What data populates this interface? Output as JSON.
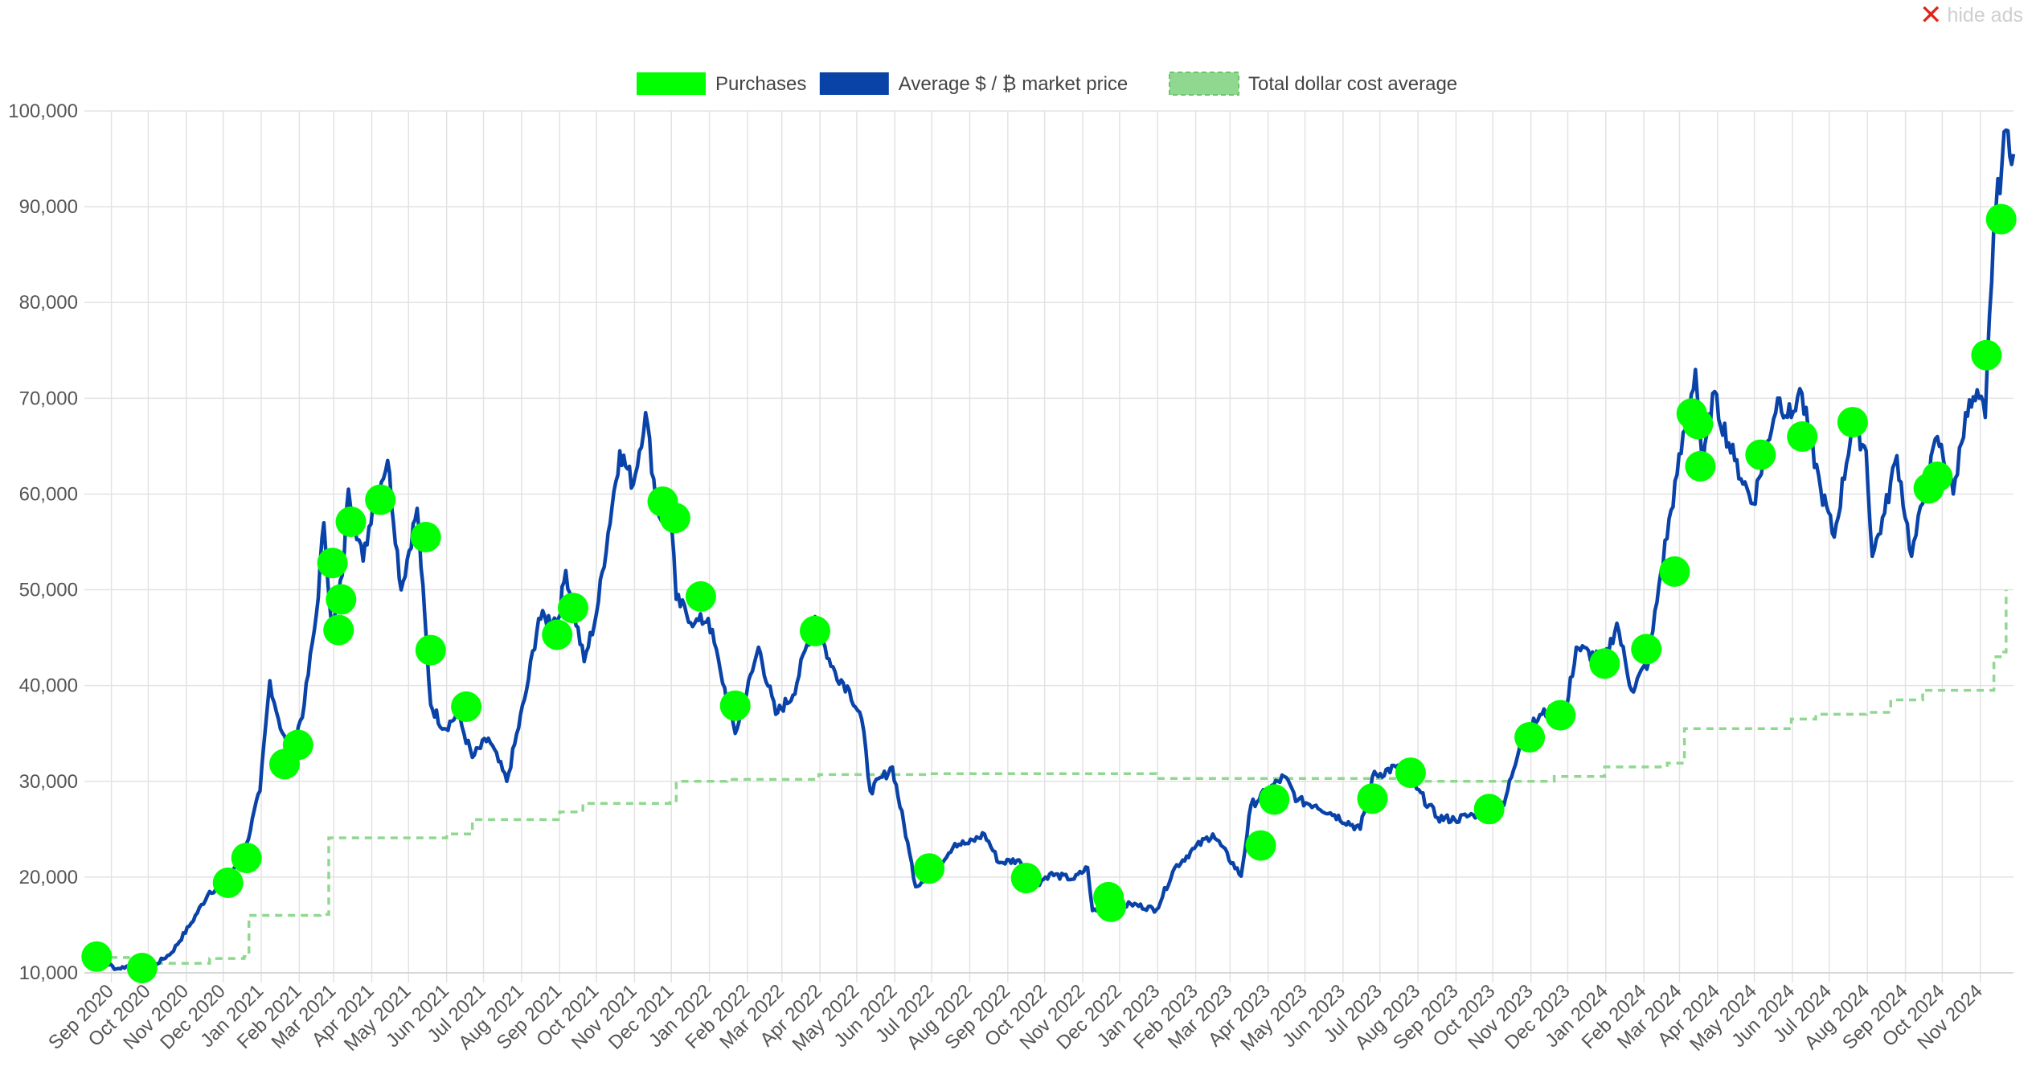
{
  "header": {
    "hide_ads_label": "hide ads",
    "hide_ads_icon": "close-x-icon"
  },
  "chart_data": {
    "type": "line",
    "title": "",
    "xlabel": "",
    "ylabel": "",
    "ylim": [
      10000,
      100000
    ],
    "y_ticks": [
      "10,000",
      "20,000",
      "30,000",
      "40,000",
      "50,000",
      "60,000",
      "70,000",
      "80,000",
      "90,000",
      "100,000"
    ],
    "y_tick_values": [
      10000,
      20000,
      30000,
      40000,
      50000,
      60000,
      70000,
      80000,
      90000,
      100000
    ],
    "x_range": [
      "2020-08-10",
      "2024-11-28"
    ],
    "categories": [
      "Sep 2020",
      "Oct 2020",
      "Nov 2020",
      "Dec 2020",
      "Jan 2021",
      "Feb 2021",
      "Mar 2021",
      "Apr 2021",
      "May 2021",
      "Jun 2021",
      "Jul 2021",
      "Aug 2021",
      "Sep 2021",
      "Oct 2021",
      "Nov 2021",
      "Dec 2021",
      "Jan 2022",
      "Feb 2022",
      "Mar 2022",
      "Apr 2022",
      "May 2022",
      "Jun 2022",
      "Jul 2022",
      "Aug 2022",
      "Sep 2022",
      "Oct 2022",
      "Nov 2022",
      "Dec 2022",
      "Jan 2023",
      "Feb 2023",
      "Mar 2023",
      "Apr 2023",
      "May 2023",
      "Jun 2023",
      "Jul 2023",
      "Aug 2023",
      "Sep 2023",
      "Oct 2023",
      "Nov 2023",
      "Dec 2023",
      "Jan 2024",
      "Feb 2024",
      "Mar 2024",
      "Apr 2024",
      "May 2024",
      "Jun 2024",
      "Jul 2024",
      "Aug 2024",
      "Sep 2024",
      "Oct 2024",
      "Nov 2024"
    ],
    "grid": true,
    "legend_position": "top-center",
    "legend": [
      {
        "label": "Purchases",
        "color": "#00ff00",
        "style": "solid"
      },
      {
        "label": "Average $ / ₿ market price",
        "color": "#0a43a8",
        "style": "solid"
      },
      {
        "label": "Total dollar cost average",
        "color": "#90d890",
        "style": "dashed"
      }
    ],
    "series": [
      {
        "name": "Average $ / ₿ market price",
        "type": "line",
        "color": "#0a43a8",
        "points": [
          [
            "2020-08-10",
            11600
          ],
          [
            "2020-08-25",
            11300
          ],
          [
            "2020-09-05",
            10400
          ],
          [
            "2020-09-20",
            10900
          ],
          [
            "2020-10-05",
            10700
          ],
          [
            "2020-10-20",
            12100
          ],
          [
            "2020-11-05",
            15200
          ],
          [
            "2020-11-20",
            18500
          ],
          [
            "2020-12-05",
            19300
          ],
          [
            "2020-12-20",
            23500
          ],
          [
            "2020-12-31",
            29000
          ],
          [
            "2021-01-08",
            40500
          ],
          [
            "2021-01-15",
            36500
          ],
          [
            "2021-01-25",
            32500
          ],
          [
            "2021-02-05",
            38000
          ],
          [
            "2021-02-15",
            47500
          ],
          [
            "2021-02-21",
            57000
          ],
          [
            "2021-02-28",
            45500
          ],
          [
            "2021-03-08",
            51500
          ],
          [
            "2021-03-13",
            60500
          ],
          [
            "2021-03-25",
            53000
          ],
          [
            "2021-04-02",
            59000
          ],
          [
            "2021-04-14",
            63500
          ],
          [
            "2021-04-25",
            50000
          ],
          [
            "2021-05-08",
            58500
          ],
          [
            "2021-05-19",
            38000
          ],
          [
            "2021-05-30",
            35500
          ],
          [
            "2021-06-10",
            37000
          ],
          [
            "2021-06-22",
            32500
          ],
          [
            "2021-07-05",
            34500
          ],
          [
            "2021-07-20",
            30000
          ],
          [
            "2021-08-05",
            39500
          ],
          [
            "2021-08-15",
            47000
          ],
          [
            "2021-08-31",
            47000
          ],
          [
            "2021-09-06",
            52000
          ],
          [
            "2021-09-21",
            42500
          ],
          [
            "2021-10-01",
            47500
          ],
          [
            "2021-10-20",
            64500
          ],
          [
            "2021-10-31",
            61000
          ],
          [
            "2021-11-10",
            68500
          ],
          [
            "2021-11-20",
            58000
          ],
          [
            "2021-12-01",
            57000
          ],
          [
            "2021-12-05",
            49000
          ],
          [
            "2021-12-20",
            46500
          ],
          [
            "2021-12-31",
            47000
          ],
          [
            "2022-01-10",
            41500
          ],
          [
            "2022-01-22",
            35000
          ],
          [
            "2022-02-05",
            41500
          ],
          [
            "2022-02-10",
            44000
          ],
          [
            "2022-02-24",
            37000
          ],
          [
            "2022-03-10",
            39000
          ],
          [
            "2022-03-28",
            47200
          ],
          [
            "2022-04-10",
            42000
          ],
          [
            "2022-04-25",
            39500
          ],
          [
            "2022-05-05",
            36500
          ],
          [
            "2022-05-12",
            29000
          ],
          [
            "2022-05-30",
            31500
          ],
          [
            "2022-06-13",
            22500
          ],
          [
            "2022-06-18",
            19000
          ],
          [
            "2022-07-08",
            21500
          ],
          [
            "2022-07-20",
            23500
          ],
          [
            "2022-07-31",
            23500
          ],
          [
            "2022-08-13",
            24500
          ],
          [
            "2022-08-25",
            21500
          ],
          [
            "2022-09-10",
            21800
          ],
          [
            "2022-09-20",
            18800
          ],
          [
            "2022-10-05",
            20300
          ],
          [
            "2022-10-25",
            19800
          ],
          [
            "2022-11-05",
            21000
          ],
          [
            "2022-11-09",
            16500
          ],
          [
            "2022-11-20",
            16300
          ],
          [
            "2022-12-10",
            17200
          ],
          [
            "2022-12-31",
            16600
          ],
          [
            "2023-01-15",
            21000
          ],
          [
            "2023-01-31",
            23000
          ],
          [
            "2023-02-15",
            24500
          ],
          [
            "2023-03-10",
            20100
          ],
          [
            "2023-03-18",
            27500
          ],
          [
            "2023-04-14",
            30500
          ],
          [
            "2023-04-25",
            28000
          ],
          [
            "2023-05-10",
            27500
          ],
          [
            "2023-05-25",
            26500
          ],
          [
            "2023-06-15",
            25000
          ],
          [
            "2023-06-25",
            30500
          ],
          [
            "2023-07-14",
            31500
          ],
          [
            "2023-07-31",
            29200
          ],
          [
            "2023-08-17",
            26200
          ],
          [
            "2023-08-31",
            26000
          ],
          [
            "2023-09-15",
            26500
          ],
          [
            "2023-09-30",
            27000
          ],
          [
            "2023-10-10",
            27500
          ],
          [
            "2023-10-24",
            34500
          ],
          [
            "2023-11-10",
            37000
          ],
          [
            "2023-11-30",
            37700
          ],
          [
            "2023-12-08",
            44000
          ],
          [
            "2023-12-31",
            42500
          ],
          [
            "2024-01-10",
            46500
          ],
          [
            "2024-01-22",
            39500
          ],
          [
            "2024-02-05",
            42600
          ],
          [
            "2024-02-15",
            52000
          ],
          [
            "2024-02-28",
            62000
          ],
          [
            "2024-03-14",
            73000
          ],
          [
            "2024-03-20",
            62500
          ],
          [
            "2024-03-28",
            70500
          ],
          [
            "2024-04-15",
            63500
          ],
          [
            "2024-04-30",
            59000
          ],
          [
            "2024-05-20",
            70000
          ],
          [
            "2024-05-31",
            68000
          ],
          [
            "2024-06-07",
            71000
          ],
          [
            "2024-06-24",
            60500
          ],
          [
            "2024-07-05",
            55500
          ],
          [
            "2024-07-20",
            67500
          ],
          [
            "2024-07-31",
            64500
          ],
          [
            "2024-08-05",
            53500
          ],
          [
            "2024-08-15",
            58000
          ],
          [
            "2024-08-25",
            64000
          ],
          [
            "2024-09-06",
            53500
          ],
          [
            "2024-09-15",
            59000
          ],
          [
            "2024-09-27",
            66000
          ],
          [
            "2024-10-10",
            60000
          ],
          [
            "2024-10-20",
            68500
          ],
          [
            "2024-10-31",
            70000
          ],
          [
            "2024-11-05",
            68000
          ],
          [
            "2024-11-12",
            88000
          ],
          [
            "2024-11-22",
            98000
          ],
          [
            "2024-11-28",
            95500
          ]
        ]
      },
      {
        "name": "Total dollar cost average",
        "type": "step",
        "color": "#90d890",
        "points": [
          [
            "2020-08-10",
            11600
          ],
          [
            "2020-09-15",
            11000
          ],
          [
            "2020-11-20",
            11500
          ],
          [
            "2020-12-18",
            11700
          ],
          [
            "2020-12-22",
            16000
          ],
          [
            "2021-02-18",
            16100
          ],
          [
            "2021-02-25",
            24100
          ],
          [
            "2021-06-01",
            24500
          ],
          [
            "2021-06-22",
            26000
          ],
          [
            "2021-09-01",
            26800
          ],
          [
            "2021-09-20",
            27700
          ],
          [
            "2021-11-30",
            27800
          ],
          [
            "2021-12-05",
            30000
          ],
          [
            "2022-01-15",
            30200
          ],
          [
            "2022-03-31",
            30700
          ],
          [
            "2022-06-30",
            30800
          ],
          [
            "2022-12-31",
            30300
          ],
          [
            "2023-07-31",
            30000
          ],
          [
            "2023-10-15",
            30000
          ],
          [
            "2023-11-20",
            30500
          ],
          [
            "2023-12-31",
            31500
          ],
          [
            "2024-02-20",
            31900
          ],
          [
            "2024-03-05",
            35500
          ],
          [
            "2024-04-10",
            35500
          ],
          [
            "2024-05-31",
            36500
          ],
          [
            "2024-06-20",
            37000
          ],
          [
            "2024-07-31",
            37200
          ],
          [
            "2024-08-20",
            38500
          ],
          [
            "2024-09-15",
            39500
          ],
          [
            "2024-11-10",
            39500
          ],
          [
            "2024-11-12",
            43000
          ],
          [
            "2024-11-20",
            43500
          ],
          [
            "2024-11-22",
            50000
          ]
        ]
      },
      {
        "name": "Purchases",
        "type": "scatter",
        "color": "#00ff00",
        "points": [
          [
            "2020-08-20",
            11700
          ],
          [
            "2020-09-26",
            10500
          ],
          [
            "2020-12-05",
            19400
          ],
          [
            "2020-12-20",
            22000
          ],
          [
            "2021-01-20",
            31800
          ],
          [
            "2021-01-31",
            33800
          ],
          [
            "2021-02-28",
            52800
          ],
          [
            "2021-03-05",
            45800
          ],
          [
            "2021-03-07",
            49000
          ],
          [
            "2021-03-15",
            57100
          ],
          [
            "2021-04-08",
            59400
          ],
          [
            "2021-05-15",
            55500
          ],
          [
            "2021-05-19",
            43700
          ],
          [
            "2021-06-17",
            37800
          ],
          [
            "2021-08-30",
            45300
          ],
          [
            "2021-09-12",
            48100
          ],
          [
            "2021-11-24",
            59200
          ],
          [
            "2021-12-04",
            57500
          ],
          [
            "2021-12-25",
            49300
          ],
          [
            "2022-01-22",
            37900
          ],
          [
            "2022-03-28",
            45700
          ],
          [
            "2022-06-29",
            20900
          ],
          [
            "2022-09-16",
            19900
          ],
          [
            "2022-11-22",
            17900
          ],
          [
            "2022-11-24",
            16900
          ],
          [
            "2023-03-26",
            23300
          ],
          [
            "2023-04-06",
            28100
          ],
          [
            "2023-06-25",
            28200
          ],
          [
            "2023-07-26",
            30900
          ],
          [
            "2023-09-28",
            27100
          ],
          [
            "2023-10-31",
            34600
          ],
          [
            "2023-11-25",
            36900
          ],
          [
            "2023-12-31",
            42300
          ],
          [
            "2024-02-03",
            43800
          ],
          [
            "2024-02-26",
            51900
          ],
          [
            "2024-03-11",
            68400
          ],
          [
            "2024-03-16",
            67300
          ],
          [
            "2024-03-18",
            62900
          ],
          [
            "2024-05-06",
            64100
          ],
          [
            "2024-06-09",
            66000
          ],
          [
            "2024-07-20",
            67500
          ],
          [
            "2024-09-20",
            60600
          ],
          [
            "2024-09-27",
            61800
          ],
          [
            "2024-11-06",
            74500
          ],
          [
            "2024-11-18",
            88700
          ]
        ]
      }
    ]
  }
}
